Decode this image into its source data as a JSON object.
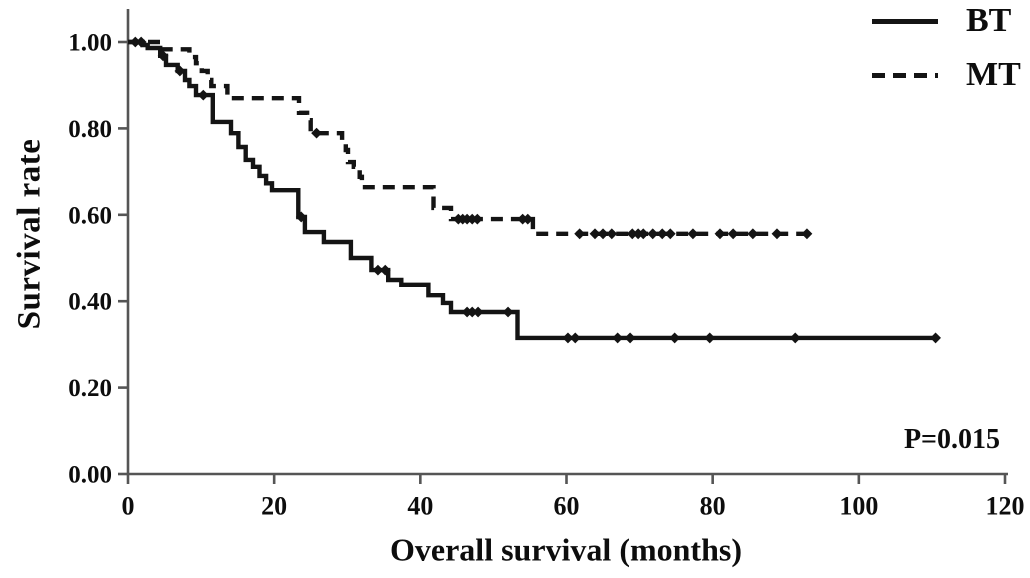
{
  "colors": {
    "curve": "#141414",
    "axis": "#555555",
    "text": "#0d0d0d",
    "background": "#ffffff"
  },
  "chart_data": {
    "type": "line",
    "subtype": "kaplan-meier-step",
    "title": "",
    "xlabel": "Overall survival (months)",
    "ylabel": "Survival rate",
    "xlim": [
      0,
      120
    ],
    "ylim": [
      0,
      1
    ],
    "x_tick_values": [
      0,
      20,
      40,
      60,
      80,
      100,
      120
    ],
    "x_tick_labels": [
      "0",
      "20",
      "40",
      "60",
      "80",
      "100",
      "120"
    ],
    "y_tick_values": [
      0,
      0.2,
      0.4,
      0.6,
      0.8,
      1.0
    ],
    "y_tick_labels": [
      "0.00",
      "0.20",
      "0.40",
      "0.60",
      "0.80",
      "1.00"
    ],
    "grid": false,
    "legend_position": "top-right",
    "annotation": {
      "text": "P=0.015",
      "position": "bottom-right"
    },
    "series": [
      {
        "name": "BT",
        "line_style": "solid",
        "steps": [
          [
            0,
            1.0
          ],
          [
            2.0,
            0.993
          ],
          [
            2.7,
            0.986
          ],
          [
            4.4,
            0.968
          ],
          [
            5.2,
            0.947
          ],
          [
            6.8,
            0.933
          ],
          [
            7.8,
            0.912
          ],
          [
            8.4,
            0.898
          ],
          [
            9.3,
            0.877
          ],
          [
            11.6,
            0.815
          ],
          [
            14.1,
            0.789
          ],
          [
            15.1,
            0.757
          ],
          [
            16.1,
            0.727
          ],
          [
            17.1,
            0.711
          ],
          [
            18.0,
            0.69
          ],
          [
            18.9,
            0.673
          ],
          [
            19.7,
            0.657
          ],
          [
            23.3,
            0.595
          ],
          [
            24.2,
            0.56
          ],
          [
            26.8,
            0.537
          ],
          [
            30.5,
            0.5
          ],
          [
            33.3,
            0.472
          ],
          [
            35.6,
            0.449
          ],
          [
            37.4,
            0.438
          ],
          [
            41.1,
            0.414
          ],
          [
            43.1,
            0.396
          ],
          [
            44.2,
            0.375
          ],
          [
            53.3,
            0.315
          ]
        ],
        "end_x": 110.8,
        "censor_marks": [
          [
            1.0,
            1.0
          ],
          [
            1.8,
            1.0
          ],
          [
            4.8,
            0.968
          ],
          [
            7.1,
            0.933
          ],
          [
            10.3,
            0.877
          ],
          [
            23.7,
            0.595
          ],
          [
            34.2,
            0.472
          ],
          [
            35.2,
            0.472
          ],
          [
            46.4,
            0.375
          ],
          [
            47.1,
            0.375
          ],
          [
            47.9,
            0.375
          ],
          [
            52.0,
            0.375
          ],
          [
            60.2,
            0.315
          ],
          [
            61.2,
            0.315
          ],
          [
            67.0,
            0.315
          ],
          [
            68.7,
            0.315
          ],
          [
            74.8,
            0.315
          ],
          [
            79.6,
            0.315
          ],
          [
            91.3,
            0.315
          ],
          [
            110.5,
            0.315
          ]
        ]
      },
      {
        "name": "MT",
        "line_style": "dashed",
        "steps": [
          [
            0,
            1.0
          ],
          [
            4.4,
            0.983
          ],
          [
            8.4,
            0.965
          ],
          [
            9.3,
            0.951
          ],
          [
            10.1,
            0.933
          ],
          [
            10.9,
            0.912
          ],
          [
            11.4,
            0.898
          ],
          [
            13.6,
            0.87
          ],
          [
            23.4,
            0.836
          ],
          [
            24.5,
            0.819
          ],
          [
            25.0,
            0.789
          ],
          [
            29.3,
            0.773
          ],
          [
            29.8,
            0.75
          ],
          [
            30.1,
            0.722
          ],
          [
            30.9,
            0.711
          ],
          [
            31.7,
            0.688
          ],
          [
            32.0,
            0.664
          ],
          [
            41.8,
            0.616
          ],
          [
            44.2,
            0.59
          ],
          [
            55.4,
            0.556
          ]
        ],
        "end_x": 92.9,
        "censor_marks": [
          [
            25.8,
            0.789
          ],
          [
            45.2,
            0.59
          ],
          [
            45.8,
            0.59
          ],
          [
            46.4,
            0.59
          ],
          [
            47.1,
            0.59
          ],
          [
            47.8,
            0.59
          ],
          [
            54.0,
            0.59
          ],
          [
            54.7,
            0.59
          ],
          [
            61.8,
            0.556
          ],
          [
            63.9,
            0.556
          ],
          [
            65.0,
            0.556
          ],
          [
            66.2,
            0.556
          ],
          [
            69.0,
            0.556
          ],
          [
            69.8,
            0.556
          ],
          [
            70.5,
            0.556
          ],
          [
            71.8,
            0.556
          ],
          [
            73.1,
            0.556
          ],
          [
            74.2,
            0.556
          ],
          [
            77.3,
            0.556
          ],
          [
            81.0,
            0.556
          ],
          [
            82.8,
            0.556
          ],
          [
            85.5,
            0.556
          ],
          [
            88.8,
            0.556
          ],
          [
            92.9,
            0.556
          ]
        ]
      }
    ]
  }
}
